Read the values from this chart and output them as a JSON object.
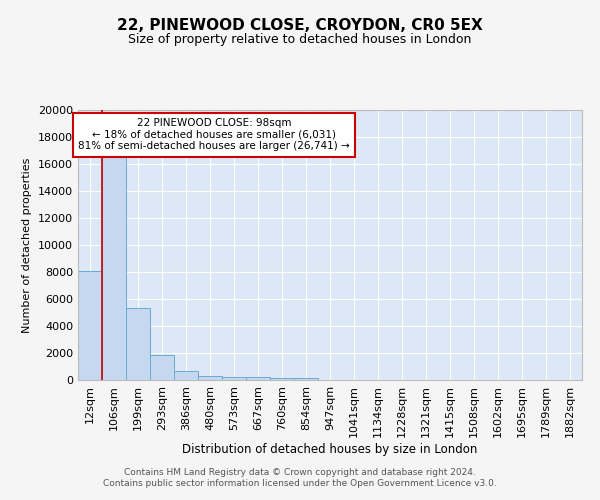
{
  "title": "22, PINEWOOD CLOSE, CROYDON, CR0 5EX",
  "subtitle": "Size of property relative to detached houses in London",
  "xlabel": "Distribution of detached houses by size in London",
  "ylabel": "Number of detached properties",
  "categories": [
    "12sqm",
    "106sqm",
    "199sqm",
    "293sqm",
    "386sqm",
    "480sqm",
    "573sqm",
    "667sqm",
    "760sqm",
    "854sqm",
    "947sqm",
    "1041sqm",
    "1134sqm",
    "1228sqm",
    "1321sqm",
    "1415sqm",
    "1508sqm",
    "1602sqm",
    "1695sqm",
    "1789sqm",
    "1882sqm"
  ],
  "values": [
    8100,
    16500,
    5300,
    1850,
    700,
    300,
    220,
    200,
    170,
    150,
    0,
    0,
    0,
    0,
    0,
    0,
    0,
    0,
    0,
    0,
    0
  ],
  "bar_color": "#c5d8f0",
  "bar_edge_color": "#6aaad4",
  "property_line_color": "#cc0000",
  "annotation_text": "22 PINEWOOD CLOSE: 98sqm\n← 18% of detached houses are smaller (6,031)\n81% of semi-detached houses are larger (26,741) →",
  "annotation_box_color": "#ffffff",
  "annotation_box_edge": "#cc0000",
  "footer_text": "Contains HM Land Registry data © Crown copyright and database right 2024.\nContains public sector information licensed under the Open Government Licence v3.0.",
  "ylim": [
    0,
    20000
  ],
  "yticks": [
    0,
    2000,
    4000,
    6000,
    8000,
    10000,
    12000,
    14000,
    16000,
    18000,
    20000
  ],
  "fig_facecolor": "#f5f5f5",
  "plot_background": "#dce8f5",
  "grid_color": "#ffffff"
}
